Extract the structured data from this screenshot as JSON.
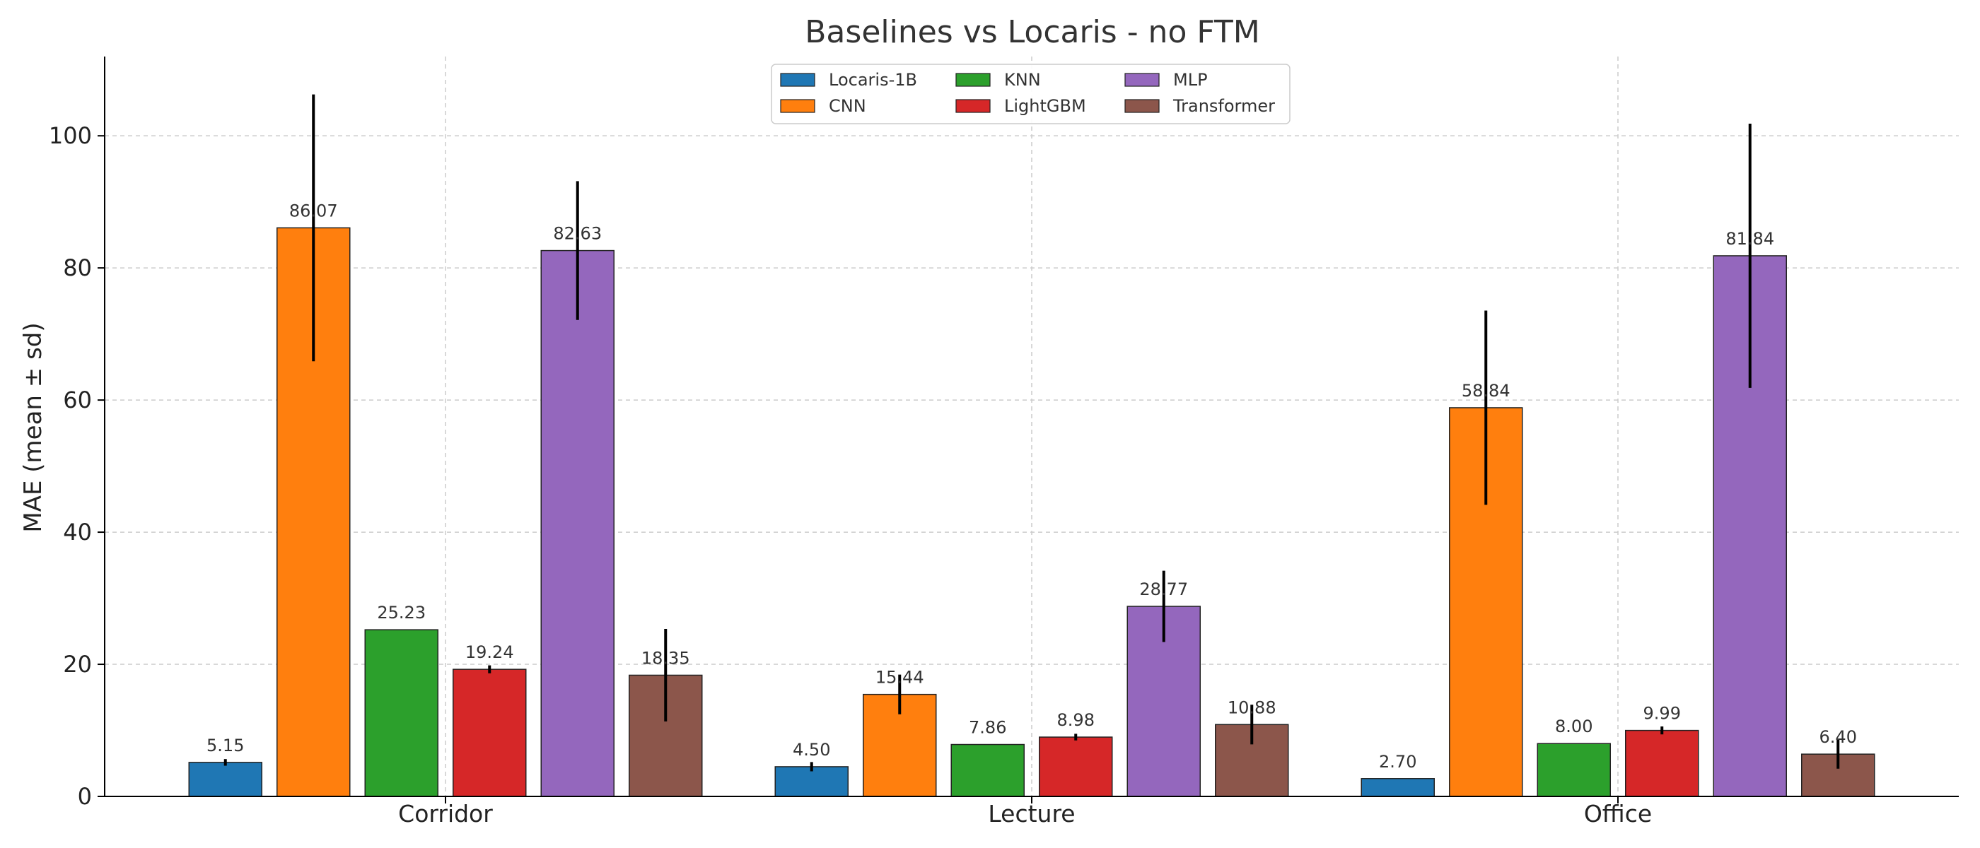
{
  "chart_data": {
    "type": "bar",
    "title": "Baselines vs Locaris - no FTM",
    "xlabel": "",
    "ylabel": "MAE (mean ± sd)",
    "ylim": [
      0,
      112
    ],
    "yticks": [
      0,
      20,
      40,
      60,
      80,
      100
    ],
    "grid": true,
    "legend_position": "top-center",
    "categories": [
      "Corridor",
      "Lecture",
      "Office"
    ],
    "series": [
      {
        "name": "Locaris-1B",
        "color": "#1f77b4",
        "values": [
          5.15,
          4.5,
          2.7
        ],
        "errors": [
          0.5,
          0.7,
          0.0
        ],
        "labels": [
          "5.15",
          "4.50",
          "2.70"
        ]
      },
      {
        "name": "CNN",
        "color": "#ff7f0e",
        "values": [
          86.07,
          15.44,
          58.84
        ],
        "errors": [
          20.2,
          3.0,
          14.7
        ],
        "labels": [
          "86.07",
          "15.44",
          "58.84"
        ]
      },
      {
        "name": "KNN",
        "color": "#2ca02c",
        "values": [
          25.23,
          7.86,
          8.0
        ],
        "errors": [
          0.0,
          0.0,
          0.0
        ],
        "labels": [
          "25.23",
          "7.86",
          "8.00"
        ]
      },
      {
        "name": "LightGBM",
        "color": "#d62728",
        "values": [
          19.24,
          8.98,
          9.99
        ],
        "errors": [
          0.6,
          0.5,
          0.6
        ],
        "labels": [
          "19.24",
          "8.98",
          "9.99"
        ]
      },
      {
        "name": "MLP",
        "color": "#9467bd",
        "values": [
          82.63,
          28.77,
          81.84
        ],
        "errors": [
          10.5,
          5.4,
          20.0
        ],
        "labels": [
          "82.63",
          "28.77",
          "81.84"
        ]
      },
      {
        "name": "Transformer",
        "color": "#8c564b",
        "values": [
          18.35,
          10.88,
          6.4
        ],
        "errors": [
          7.0,
          3.0,
          2.2
        ],
        "labels": [
          "18.35",
          "10.88",
          "6.40"
        ]
      }
    ]
  }
}
